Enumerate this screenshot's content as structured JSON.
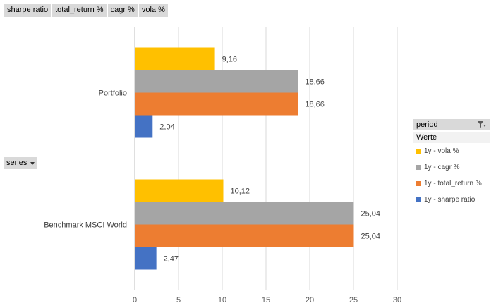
{
  "field_buttons": [
    "sharpe ratio",
    "total_return %",
    "cagr  %",
    "vola %"
  ],
  "series_button": "series",
  "legend": {
    "title": "period",
    "subtitle": "Werte",
    "items": [
      {
        "label": "1y - vola %",
        "color": "#ffc000"
      },
      {
        "label": "1y - cagr %",
        "color": "#a5a5a5"
      },
      {
        "label": "1y - total_return %",
        "color": "#ed7d31"
      },
      {
        "label": "1y - sharpe ratio",
        "color": "#4472c4"
      }
    ]
  },
  "chart_data": {
    "type": "bar",
    "orientation": "horizontal",
    "categories": [
      "Portfolio",
      "Benchmark MSCI World"
    ],
    "series": [
      {
        "name": "1y - vola %",
        "color": "#ffc000",
        "values": [
          9.16,
          10.12
        ],
        "labels": [
          "9,16",
          "10,12"
        ]
      },
      {
        "name": "1y - cagr %",
        "color": "#a5a5a5",
        "values": [
          18.66,
          25.04
        ],
        "labels": [
          "18,66",
          "25,04"
        ]
      },
      {
        "name": "1y - total_return %",
        "color": "#ed7d31",
        "values": [
          18.66,
          25.04
        ],
        "labels": [
          "18,66",
          "25,04"
        ]
      },
      {
        "name": "1y - sharpe ratio",
        "color": "#4472c4",
        "values": [
          2.04,
          2.47
        ],
        "labels": [
          "2,04",
          "2,47"
        ]
      }
    ],
    "xlim": [
      0,
      30
    ],
    "xticks": [
      0,
      5,
      10,
      15,
      20,
      25,
      30
    ],
    "grid": true,
    "legend_position": "right"
  }
}
